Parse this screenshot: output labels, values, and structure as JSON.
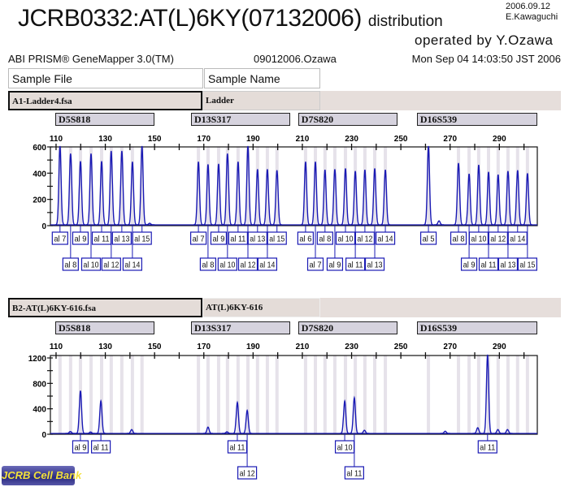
{
  "header": {
    "title": "JCRB0332:AT(L)6KY(07132006)",
    "title_suffix": "distribution",
    "date": "2006.09.12",
    "author": "E.Kawaguchi",
    "operator": "operated by Y.Ozawa",
    "software": "ABI PRISM® GeneMapper 3.0(TM)",
    "run_name": "09012006.Ozawa",
    "timestamp": "Mon Sep 04 14:03:50 JST 2006",
    "col_sample_file": "Sample File",
    "col_sample_name": "Sample Name"
  },
  "logo_text": "JCRB Cell Bank",
  "colors": {
    "trace": "#1a1ab4",
    "bin": "#e6e2ea",
    "label": "#1a1ab4"
  },
  "chart_data": [
    {
      "type": "line",
      "sample_file": "A1-Ladder4.fsa",
      "sample_name": "Ladder",
      "xlim": [
        107.7,
        305.4
      ],
      "ylim": [
        0,
        600
      ],
      "x_ticks": [
        110,
        130,
        150,
        170,
        190,
        210,
        230,
        250,
        270,
        290
      ],
      "y_ticks": [
        0,
        200,
        400,
        600
      ],
      "markers": [
        {
          "name": "D5S818",
          "range": [
            109.7,
            149.9
          ]
        },
        {
          "name": "D13S317",
          "range": [
            164.8,
            205.0
          ]
        },
        {
          "name": "D7S820",
          "range": [
            208.3,
            248.6
          ]
        },
        {
          "name": "D16S539",
          "range": [
            256.5,
            305.4
          ]
        }
      ],
      "peaks": [
        {
          "bp": 111.6,
          "height": 600,
          "label": "al 7",
          "row": 1
        },
        {
          "bp": 115.9,
          "height": 543,
          "label": "al 8",
          "row": 2
        },
        {
          "bp": 119.9,
          "height": 485,
          "label": "al 9",
          "row": 1
        },
        {
          "bp": 124.2,
          "height": 543,
          "label": "al 10",
          "row": 2
        },
        {
          "bp": 128.5,
          "height": 485,
          "label": "al 11",
          "row": 1
        },
        {
          "bp": 132.4,
          "height": 563,
          "label": "al 12",
          "row": 2
        },
        {
          "bp": 136.7,
          "height": 563,
          "label": "al 13",
          "row": 1
        },
        {
          "bp": 141.0,
          "height": 481,
          "label": "al 14",
          "row": 2
        },
        {
          "bp": 144.9,
          "height": 600,
          "label": "al 15",
          "row": 1
        },
        {
          "bp": 167.8,
          "height": 481,
          "label": "al 7",
          "row": 1
        },
        {
          "bp": 171.7,
          "height": 461,
          "label": "al 8",
          "row": 2
        },
        {
          "bp": 176.0,
          "height": 465,
          "label": "al 9",
          "row": 1
        },
        {
          "bp": 179.6,
          "height": 543,
          "label": "al 10",
          "row": 2
        },
        {
          "bp": 183.9,
          "height": 481,
          "label": "al 11",
          "row": 1
        },
        {
          "bp": 187.9,
          "height": 600,
          "label": "al 12",
          "row": 2
        },
        {
          "bp": 191.8,
          "height": 424,
          "label": "al 13",
          "row": 1
        },
        {
          "bp": 195.8,
          "height": 424,
          "label": "al 14",
          "row": 2
        },
        {
          "bp": 199.7,
          "height": 416,
          "label": "al 15",
          "row": 1
        },
        {
          "bp": 211.3,
          "height": 481,
          "label": "al 6",
          "row": 1
        },
        {
          "bp": 215.3,
          "height": 481,
          "label": "al 7",
          "row": 2
        },
        {
          "bp": 219.2,
          "height": 420,
          "label": "al 8",
          "row": 1
        },
        {
          "bp": 223.2,
          "height": 424,
          "label": "al 9",
          "row": 2
        },
        {
          "bp": 227.5,
          "height": 430,
          "label": "al 10",
          "row": 1
        },
        {
          "bp": 231.5,
          "height": 410,
          "label": "al 11",
          "row": 2
        },
        {
          "bp": 235.4,
          "height": 420,
          "label": "al 12",
          "row": 1
        },
        {
          "bp": 239.4,
          "height": 430,
          "label": "al 13",
          "row": 2
        },
        {
          "bp": 243.7,
          "height": 420,
          "label": "al 14",
          "row": 1
        },
        {
          "bp": 261.2,
          "height": 600,
          "label": "al 5",
          "row": 1
        },
        {
          "bp": 273.4,
          "height": 471,
          "label": "al 8",
          "row": 1
        },
        {
          "bp": 277.7,
          "height": 389,
          "label": "al 9",
          "row": 2
        },
        {
          "bp": 281.6,
          "height": 457,
          "label": "al 10",
          "row": 1
        },
        {
          "bp": 285.6,
          "height": 403,
          "label": "al 11",
          "row": 2
        },
        {
          "bp": 289.5,
          "height": 383,
          "label": "al 12",
          "row": 1
        },
        {
          "bp": 293.5,
          "height": 410,
          "label": "al 13",
          "row": 2
        },
        {
          "bp": 297.4,
          "height": 416,
          "label": "al 14",
          "row": 1
        },
        {
          "bp": 301.4,
          "height": 393,
          "label": "al 15",
          "row": 2
        },
        {
          "bp": 265.5,
          "height": 30,
          "label": "",
          "row": 0
        },
        {
          "bp": 148.0,
          "height": 12,
          "label": "",
          "row": 0
        }
      ]
    },
    {
      "type": "line",
      "sample_file": "B2-AT(L)6KY-616.fsa",
      "sample_name": "AT(L)6KY-616",
      "xlim": [
        107.7,
        305.4
      ],
      "ylim": [
        0,
        1250
      ],
      "x_ticks": [
        110,
        130,
        150,
        170,
        190,
        210,
        230,
        250,
        270,
        290
      ],
      "y_ticks": [
        0,
        400,
        800,
        1200
      ],
      "markers": [
        {
          "name": "D5S818",
          "range": [
            109.7,
            149.9
          ]
        },
        {
          "name": "D13S317",
          "range": [
            164.8,
            205.0
          ]
        },
        {
          "name": "D7S820",
          "range": [
            208.3,
            248.6
          ]
        },
        {
          "name": "D16S539",
          "range": [
            256.5,
            305.4
          ]
        }
      ],
      "peaks": [
        {
          "bp": 119.9,
          "height": 672,
          "label": "al 9",
          "row": 1
        },
        {
          "bp": 128.2,
          "height": 511,
          "label": "al 11",
          "row": 1
        },
        {
          "bp": 183.6,
          "height": 489,
          "label": "al 11",
          "row": 1
        },
        {
          "bp": 187.6,
          "height": 362,
          "label": "al 12",
          "row": 2
        },
        {
          "bp": 227.2,
          "height": 510,
          "label": "al 10",
          "row": 1
        },
        {
          "bp": 231.1,
          "height": 562,
          "label": "al 11",
          "row": 2
        },
        {
          "bp": 285.2,
          "height": 1240,
          "label": "al 11",
          "row": 1
        },
        {
          "bp": 115.8,
          "height": 30,
          "label": "",
          "row": 0
        },
        {
          "bp": 124.0,
          "height": 22,
          "label": "",
          "row": 0
        },
        {
          "bp": 140.7,
          "height": 60,
          "label": "",
          "row": 0
        },
        {
          "bp": 171.7,
          "height": 100,
          "label": "",
          "row": 0
        },
        {
          "bp": 179.4,
          "height": 25,
          "label": "",
          "row": 0
        },
        {
          "bp": 235.2,
          "height": 50,
          "label": "",
          "row": 0
        },
        {
          "bp": 268.0,
          "height": 35,
          "label": "",
          "row": 0
        },
        {
          "bp": 281.2,
          "height": 90,
          "label": "",
          "row": 0
        },
        {
          "bp": 289.4,
          "height": 60,
          "label": "",
          "row": 0
        },
        {
          "bp": 293.3,
          "height": 60,
          "label": "",
          "row": 0
        }
      ]
    }
  ]
}
